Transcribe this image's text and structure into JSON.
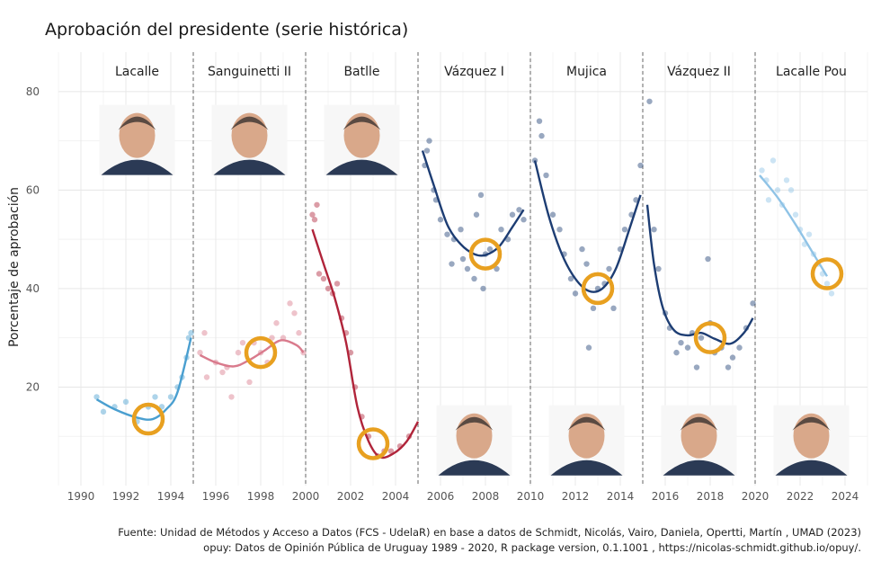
{
  "chart_data": {
    "type": "scatter",
    "title": "Aprobación del presidente (serie histórica)",
    "xlabel": "",
    "ylabel": "Porcentaje de aprobación",
    "xlim": [
      1989,
      2025
    ],
    "ylim": [
      0,
      88
    ],
    "x_ticks": [
      1990,
      1992,
      1994,
      1996,
      1998,
      2000,
      2002,
      2004,
      2006,
      2008,
      2010,
      2012,
      2014,
      2016,
      2018,
      2020,
      2022,
      2024
    ],
    "y_ticks": [
      20,
      40,
      60,
      80
    ],
    "grid": true,
    "legend": "none",
    "boundaries": [
      1995,
      2000,
      2005,
      2010,
      2015,
      2020
    ],
    "series": [
      {
        "name": "Lacalle",
        "color": "#4a9fd0",
        "start": 1990,
        "end": 1995,
        "highlight": [
          1993,
          13.5
        ],
        "points": [
          [
            1990.7,
            18
          ],
          [
            1991.0,
            15
          ],
          [
            1991.5,
            16
          ],
          [
            1992.0,
            17
          ],
          [
            1992.5,
            13
          ],
          [
            1993.0,
            16
          ],
          [
            1993.3,
            18
          ],
          [
            1993.6,
            16
          ],
          [
            1994.0,
            18
          ],
          [
            1994.3,
            20
          ],
          [
            1994.5,
            22
          ],
          [
            1994.7,
            26
          ],
          [
            1994.8,
            30
          ],
          [
            1994.9,
            31
          ]
        ],
        "curve": [
          [
            1990.7,
            17.5
          ],
          [
            1991.5,
            15.5
          ],
          [
            1992.5,
            13.8
          ],
          [
            1993.2,
            13.5
          ],
          [
            1993.8,
            15.5
          ],
          [
            1994.3,
            19
          ],
          [
            1994.9,
            30
          ]
        ]
      },
      {
        "name": "Sanguinetti II",
        "color": "#d97a8c",
        "start": 1995,
        "end": 2000,
        "highlight": [
          1998,
          27
        ],
        "points": [
          [
            1995.3,
            27
          ],
          [
            1995.5,
            31
          ],
          [
            1995.6,
            22
          ],
          [
            1996.0,
            25
          ],
          [
            1996.3,
            23
          ],
          [
            1996.5,
            24
          ],
          [
            1996.7,
            18
          ],
          [
            1997.0,
            27
          ],
          [
            1997.2,
            29
          ],
          [
            1997.5,
            21
          ],
          [
            1997.7,
            29
          ],
          [
            1998.0,
            27
          ],
          [
            1998.3,
            25
          ],
          [
            1998.5,
            30
          ],
          [
            1998.7,
            33
          ],
          [
            1999.0,
            30
          ],
          [
            1999.3,
            37
          ],
          [
            1999.5,
            35
          ],
          [
            1999.7,
            31
          ],
          [
            1999.9,
            27
          ]
        ],
        "curve": [
          [
            1995.3,
            26.5
          ],
          [
            1996.0,
            25
          ],
          [
            1996.8,
            24.2
          ],
          [
            1997.5,
            25.5
          ],
          [
            1998.2,
            27.5
          ],
          [
            1998.9,
            29.5
          ],
          [
            1999.6,
            28.5
          ],
          [
            1999.9,
            27
          ]
        ]
      },
      {
        "name": "Batlle",
        "color": "#b0243a",
        "start": 2000,
        "end": 2005,
        "highlight": [
          2003,
          8.5
        ],
        "points": [
          [
            2000.3,
            55
          ],
          [
            2000.4,
            54
          ],
          [
            2000.5,
            57
          ],
          [
            2000.6,
            43
          ],
          [
            2000.8,
            42
          ],
          [
            2001.0,
            40
          ],
          [
            2001.2,
            39
          ],
          [
            2001.4,
            41
          ],
          [
            2001.6,
            34
          ],
          [
            2001.8,
            31
          ],
          [
            2002.0,
            27
          ],
          [
            2002.2,
            20
          ],
          [
            2002.5,
            14
          ],
          [
            2002.8,
            10
          ],
          [
            2003.2,
            6
          ],
          [
            2003.5,
            7
          ],
          [
            2003.8,
            7
          ],
          [
            2004.2,
            8
          ],
          [
            2004.6,
            10
          ]
        ],
        "curve": [
          [
            2000.3,
            52
          ],
          [
            2000.8,
            45
          ],
          [
            2001.3,
            38
          ],
          [
            2001.8,
            29
          ],
          [
            2002.3,
            16
          ],
          [
            2002.8,
            9
          ],
          [
            2003.3,
            5.8
          ],
          [
            2003.9,
            6.5
          ],
          [
            2004.5,
            9
          ],
          [
            2005.0,
            13
          ]
        ]
      },
      {
        "name": "Vázquez I",
        "color": "#1d3d73",
        "start": 2005,
        "end": 2010,
        "highlight": [
          2008,
          47
        ],
        "points": [
          [
            2005.3,
            65
          ],
          [
            2005.4,
            68
          ],
          [
            2005.5,
            70
          ],
          [
            2005.7,
            60
          ],
          [
            2005.8,
            58
          ],
          [
            2006.0,
            54
          ],
          [
            2006.3,
            51
          ],
          [
            2006.5,
            45
          ],
          [
            2006.6,
            50
          ],
          [
            2006.9,
            52
          ],
          [
            2007.0,
            46
          ],
          [
            2007.2,
            44
          ],
          [
            2007.5,
            42
          ],
          [
            2007.6,
            55
          ],
          [
            2007.8,
            59
          ],
          [
            2007.9,
            40
          ],
          [
            2008.0,
            47
          ],
          [
            2008.2,
            48
          ],
          [
            2008.5,
            44
          ],
          [
            2008.7,
            52
          ],
          [
            2009.0,
            50
          ],
          [
            2009.2,
            55
          ],
          [
            2009.5,
            56
          ],
          [
            2009.7,
            54
          ]
        ],
        "curve": [
          [
            2005.2,
            68
          ],
          [
            2005.7,
            61
          ],
          [
            2006.3,
            53
          ],
          [
            2006.9,
            49
          ],
          [
            2007.5,
            47
          ],
          [
            2008.0,
            46.8
          ],
          [
            2008.6,
            48.5
          ],
          [
            2009.2,
            52.5
          ],
          [
            2009.7,
            56
          ]
        ]
      },
      {
        "name": "Mujica",
        "color": "#1d3d73",
        "start": 2010,
        "end": 2015,
        "highlight": [
          2013,
          40
        ],
        "points": [
          [
            2010.2,
            66
          ],
          [
            2010.4,
            74
          ],
          [
            2010.5,
            71
          ],
          [
            2010.7,
            63
          ],
          [
            2011.0,
            55
          ],
          [
            2011.3,
            52
          ],
          [
            2011.5,
            47
          ],
          [
            2011.8,
            42
          ],
          [
            2012.0,
            39
          ],
          [
            2012.3,
            48
          ],
          [
            2012.5,
            45
          ],
          [
            2012.6,
            28
          ],
          [
            2012.8,
            36
          ],
          [
            2013.0,
            40
          ],
          [
            2013.3,
            41
          ],
          [
            2013.5,
            44
          ],
          [
            2013.7,
            36
          ],
          [
            2014.0,
            48
          ],
          [
            2014.2,
            52
          ],
          [
            2014.5,
            55
          ],
          [
            2014.7,
            58
          ],
          [
            2014.9,
            65
          ]
        ],
        "curve": [
          [
            2010.2,
            66
          ],
          [
            2010.8,
            55
          ],
          [
            2011.4,
            47
          ],
          [
            2012.0,
            42
          ],
          [
            2012.6,
            39.5
          ],
          [
            2013.2,
            40
          ],
          [
            2013.8,
            44
          ],
          [
            2014.4,
            52
          ],
          [
            2014.9,
            59
          ]
        ]
      },
      {
        "name": "Vázquez II",
        "color": "#1d3d73",
        "start": 2015,
        "end": 2020,
        "highlight": [
          2018,
          30
        ],
        "points": [
          [
            2015.3,
            78
          ],
          [
            2015.5,
            52
          ],
          [
            2015.7,
            44
          ],
          [
            2016.0,
            35
          ],
          [
            2016.2,
            32
          ],
          [
            2016.5,
            27
          ],
          [
            2016.7,
            29
          ],
          [
            2017.0,
            28
          ],
          [
            2017.2,
            31
          ],
          [
            2017.4,
            24
          ],
          [
            2017.6,
            30
          ],
          [
            2017.9,
            46
          ],
          [
            2018.0,
            33
          ],
          [
            2018.2,
            27
          ],
          [
            2018.5,
            28
          ],
          [
            2018.8,
            24
          ],
          [
            2019.0,
            26
          ],
          [
            2019.3,
            28
          ],
          [
            2019.6,
            32
          ],
          [
            2019.9,
            37
          ]
        ],
        "curve": [
          [
            2015.2,
            57
          ],
          [
            2015.5,
            45
          ],
          [
            2015.9,
            36
          ],
          [
            2016.4,
            31.5
          ],
          [
            2017.0,
            30.5
          ],
          [
            2017.6,
            31
          ],
          [
            2018.2,
            29.8
          ],
          [
            2018.9,
            28.8
          ],
          [
            2019.5,
            31
          ],
          [
            2019.9,
            34
          ]
        ]
      },
      {
        "name": "Lacalle Pou",
        "color": "#8fc3e6",
        "start": 2020,
        "end": 2025,
        "highlight": [
          2023.2,
          43
        ],
        "points": [
          [
            2020.3,
            64
          ],
          [
            2020.5,
            62
          ],
          [
            2020.6,
            58
          ],
          [
            2020.8,
            66
          ],
          [
            2021.0,
            60
          ],
          [
            2021.2,
            57
          ],
          [
            2021.4,
            62
          ],
          [
            2021.6,
            60
          ],
          [
            2021.8,
            55
          ],
          [
            2022.0,
            52
          ],
          [
            2022.2,
            49
          ],
          [
            2022.4,
            51
          ],
          [
            2022.6,
            47
          ],
          [
            2022.8,
            45
          ],
          [
            2023.0,
            43
          ],
          [
            2023.2,
            41
          ],
          [
            2023.4,
            39
          ]
        ],
        "curve": [
          [
            2020.2,
            63
          ],
          [
            2021.0,
            58.5
          ],
          [
            2021.8,
            53
          ],
          [
            2022.6,
            47
          ],
          [
            2023.2,
            42.5
          ]
        ]
      }
    ],
    "portraits": [
      {
        "name": "Lacalle",
        "x": 1992.5,
        "y": 70
      },
      {
        "name": "Sanguinetti II",
        "x": 1997.5,
        "y": 70
      },
      {
        "name": "Batlle",
        "x": 2002.5,
        "y": 70
      },
      {
        "name": "Vázquez I",
        "x": 2007.5,
        "y": 9
      },
      {
        "name": "Mujica",
        "x": 2012.5,
        "y": 9
      },
      {
        "name": "Vázquez II",
        "x": 2017.5,
        "y": 9
      },
      {
        "name": "Lacalle Pou",
        "x": 2022.5,
        "y": 9
      }
    ],
    "highlight_color": "#e8a020",
    "source": [
      "Fuente: Unidad de Métodos y Acceso a Datos (FCS - UdelaR) en base a datos de Schmidt, Nicolás, Vairo, Daniela, Opertti, Martín , UMAD (2023)",
      "opuy: Datos de Opinión Pública de Uruguay 1989 - 2020, R package version, 0.1.1001 , https://nicolas-schmidt.github.io/opuy/."
    ]
  }
}
